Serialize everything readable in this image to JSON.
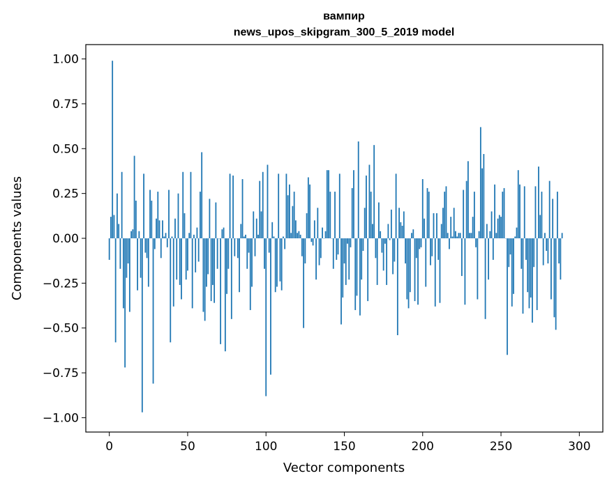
{
  "chart_data": {
    "type": "bar",
    "title": "вампир",
    "subtitle": "news_upos_skipgram_300_5_2019 model",
    "xlabel": "Vector components",
    "ylabel": "Components values",
    "xlim": [
      -15,
      315
    ],
    "ylim": [
      -1.08,
      1.08
    ],
    "xticks": [
      0,
      50,
      100,
      150,
      200,
      250,
      300
    ],
    "xtick_labels": [
      "0",
      "50",
      "100",
      "150",
      "200",
      "250",
      "300"
    ],
    "yticks": [
      1.0,
      0.75,
      0.5,
      0.25,
      0.0,
      -0.25,
      -0.5,
      -0.75,
      -1.0
    ],
    "ytick_labels": [
      "1.00",
      "0.75",
      "0.50",
      "0.25",
      "0.00",
      "−0.25",
      "−0.50",
      "−0.75",
      "−1.00"
    ],
    "bar_color": "#1f77b4",
    "grid": false,
    "x_start": 0,
    "values": [
      -0.12,
      0.12,
      0.99,
      0.13,
      -0.58,
      0.25,
      0.08,
      -0.17,
      0.37,
      -0.39,
      -0.72,
      -0.22,
      -0.14,
      -0.41,
      0.04,
      0.05,
      0.46,
      0.21,
      -0.29,
      0.04,
      -0.22,
      -0.97,
      0.36,
      -0.08,
      -0.11,
      -0.27,
      0.27,
      0.21,
      -0.81,
      -0.06,
      0.11,
      0.26,
      0.1,
      -0.11,
      0.1,
      0.01,
      0.03,
      -0.05,
      0.27,
      -0.58,
      0.01,
      -0.38,
      0.11,
      -0.23,
      0.25,
      -0.26,
      -0.34,
      0.37,
      0.14,
      -0.23,
      -0.18,
      0.03,
      0.37,
      -0.39,
      0.02,
      -0.19,
      0.06,
      -0.13,
      0.26,
      0.48,
      -0.41,
      -0.46,
      -0.27,
      -0.2,
      0.22,
      -0.35,
      -0.26,
      -0.36,
      0.2,
      -0.17,
      0.0,
      -0.59,
      0.05,
      0.06,
      -0.63,
      -0.31,
      -0.17,
      0.36,
      -0.45,
      0.35,
      -0.1,
      0.0,
      -0.11,
      -0.3,
      0.08,
      0.33,
      0.01,
      0.02,
      -0.17,
      -0.08,
      -0.4,
      -0.27,
      0.15,
      -0.1,
      0.11,
      0.02,
      0.32,
      0.15,
      0.37,
      -0.17,
      -0.88,
      0.41,
      -0.08,
      -0.76,
      0.09,
      0.01,
      -0.3,
      -0.27,
      0.36,
      -0.24,
      -0.29,
      0.01,
      -0.06,
      0.36,
      0.24,
      0.3,
      0.03,
      0.18,
      0.26,
      0.1,
      0.03,
      0.04,
      0.02,
      -0.1,
      -0.5,
      -0.14,
      0.14,
      0.34,
      0.3,
      -0.02,
      -0.04,
      0.1,
      -0.23,
      0.17,
      -0.15,
      -0.11,
      0.06,
      0.0,
      0.04,
      0.38,
      0.38,
      0.26,
      0.0,
      -0.17,
      0.26,
      -0.12,
      -0.09,
      0.36,
      -0.48,
      -0.33,
      -0.14,
      -0.26,
      -0.03,
      -0.23,
      -0.05,
      0.28,
      0.38,
      -0.4,
      -0.32,
      0.54,
      -0.43,
      -0.23,
      -0.07,
      0.17,
      0.35,
      -0.35,
      0.41,
      0.26,
      0.08,
      0.52,
      -0.11,
      -0.26,
      0.2,
      0.04,
      -0.08,
      -0.18,
      -0.03,
      -0.26,
      0.08,
      -0.01,
      0.16,
      -0.2,
      -0.13,
      0.36,
      -0.54,
      0.17,
      0.09,
      0.07,
      0.15,
      -0.14,
      -0.34,
      -0.39,
      -0.3,
      0.03,
      0.05,
      -0.35,
      -0.11,
      -0.37,
      -0.06,
      -0.05,
      0.33,
      0.11,
      -0.27,
      0.28,
      0.26,
      -0.15,
      -0.1,
      0.14,
      -0.38,
      0.14,
      -0.12,
      -0.36,
      0.08,
      0.17,
      0.26,
      0.29,
      0.03,
      -0.06,
      0.12,
      0.01,
      0.17,
      0.04,
      0.01,
      0.03,
      0.03,
      -0.21,
      0.27,
      -0.37,
      0.32,
      0.43,
      0.03,
      0.03,
      0.12,
      0.26,
      -0.05,
      -0.34,
      0.04,
      0.62,
      0.39,
      0.47,
      -0.45,
      0.08,
      -0.23,
      0.04,
      0.15,
      -0.12,
      0.3,
      0.03,
      0.11,
      0.13,
      0.12,
      0.26,
      0.28,
      0.0,
      -0.65,
      -0.16,
      -0.09,
      -0.38,
      -0.31,
      0.01,
      0.06,
      0.38,
      0.3,
      -0.17,
      -0.42,
      0.29,
      -0.12,
      -0.3,
      -0.39,
      -0.33,
      -0.47,
      -0.16,
      0.29,
      -0.4,
      0.4,
      0.13,
      0.26,
      -0.15,
      0.03,
      -0.07,
      -0.14,
      0.32,
      -0.34,
      0.22,
      -0.44,
      -0.51,
      0.26,
      -0.14,
      -0.23,
      0.03
    ]
  }
}
